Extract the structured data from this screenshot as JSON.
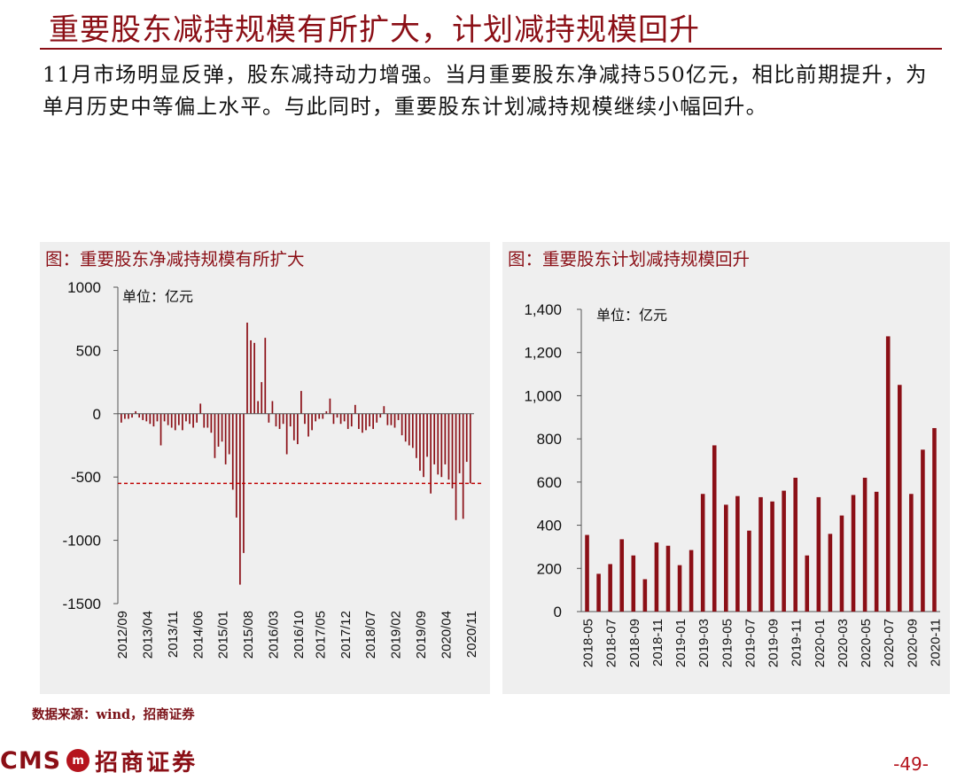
{
  "header": {
    "title": "重要股东减持规模有所扩大，计划减持规模回升",
    "body": "11月市场明显反弹，股东减持动力增强。当月重要股东净减持550亿元，相比前期提升，为单月历史中等偏上水平。与此同时，重要股东计划减持规模继续小幅回升。"
  },
  "colors": {
    "accent": "#8b0f16",
    "bar": "#8b0f16",
    "panel_bg": "#efefef"
  },
  "chart_data": [
    {
      "type": "bar",
      "title": "图：重要股东净减持规模有所扩大",
      "unit_label": "单位：亿元",
      "xlabel": "",
      "ylabel": "",
      "ylim": [
        -1500,
        1000
      ],
      "yticks": [
        1000,
        500,
        0,
        -500,
        -1000,
        -1500
      ],
      "reference_line": {
        "value": -550,
        "style": "dashed"
      },
      "tick_labels": [
        "2012/09",
        "2013/04",
        "2013/11",
        "2014/06",
        "2015/01",
        "2015/08",
        "2016/03",
        "2016/10",
        "2017/05",
        "2017/12",
        "2018/07",
        "2019/02",
        "2019/09",
        "2020/04",
        "2020/11"
      ],
      "start_month": "2012/09",
      "values": [
        -70,
        -40,
        -40,
        -30,
        20,
        -30,
        -50,
        -60,
        -80,
        -100,
        -60,
        -250,
        -60,
        -90,
        -110,
        -130,
        -90,
        -130,
        -60,
        -80,
        -110,
        -70,
        80,
        -110,
        -110,
        -150,
        -350,
        -260,
        -220,
        -400,
        -320,
        -600,
        -820,
        -1350,
        -1100,
        720,
        580,
        560,
        100,
        250,
        600,
        -70,
        100,
        -100,
        -120,
        -80,
        -320,
        -100,
        -210,
        -240,
        180,
        -80,
        -180,
        -130,
        -60,
        -40,
        -40,
        20,
        120,
        -80,
        -30,
        -80,
        -60,
        -120,
        -100,
        70,
        -120,
        -150,
        -130,
        -100,
        -120,
        -70,
        -30,
        60,
        -90,
        -90,
        -110,
        -50,
        -170,
        -220,
        -250,
        -270,
        -350,
        -450,
        -500,
        -340,
        -630,
        -400,
        -480,
        -500,
        -400,
        -520,
        -590,
        -840,
        -470,
        -830,
        -380,
        -550
      ],
      "grid": false,
      "legend": "none"
    },
    {
      "type": "bar",
      "title": "图：重要股东计划减持规模回升",
      "unit_label": "单位：亿元",
      "xlabel": "",
      "ylabel": "",
      "ylim": [
        0,
        1400
      ],
      "yticks": [
        "0",
        "200",
        "400",
        "600",
        "800",
        "1,000",
        "1,200",
        "1,400"
      ],
      "categories": [
        "2018-05",
        "2018-06",
        "2018-07",
        "2018-08",
        "2018-09",
        "2018-10",
        "2018-11",
        "2018-12",
        "2019-01",
        "2019-02",
        "2019-03",
        "2019-04",
        "2019-05",
        "2019-06",
        "2019-07",
        "2019-08",
        "2019-09",
        "2019-10",
        "2019-11",
        "2019-12",
        "2020-01",
        "2020-02",
        "2020-03",
        "2020-04",
        "2020-05",
        "2020-06",
        "2020-07",
        "2020-08",
        "2020-09",
        "2020-10",
        "2020-11"
      ],
      "tick_labels": [
        "2018-05",
        "2018-07",
        "2018-09",
        "2018-11",
        "2019-01",
        "2019-03",
        "2019-05",
        "2019-07",
        "2019-09",
        "2019-11",
        "2020-01",
        "2020-03",
        "2020-05",
        "2020-07",
        "2020-09",
        "2020-11"
      ],
      "values": [
        355,
        175,
        220,
        335,
        260,
        150,
        320,
        305,
        215,
        285,
        545,
        770,
        495,
        535,
        375,
        530,
        510,
        560,
        620,
        260,
        530,
        360,
        445,
        540,
        620,
        555,
        1275,
        1050,
        545,
        750,
        850
      ],
      "grid": false,
      "legend": "none"
    }
  ],
  "footer": {
    "source": "数据来源：wind，招商证券",
    "logo_text": "CMS",
    "logo_cn": "招商证券",
    "page": "-49-"
  }
}
